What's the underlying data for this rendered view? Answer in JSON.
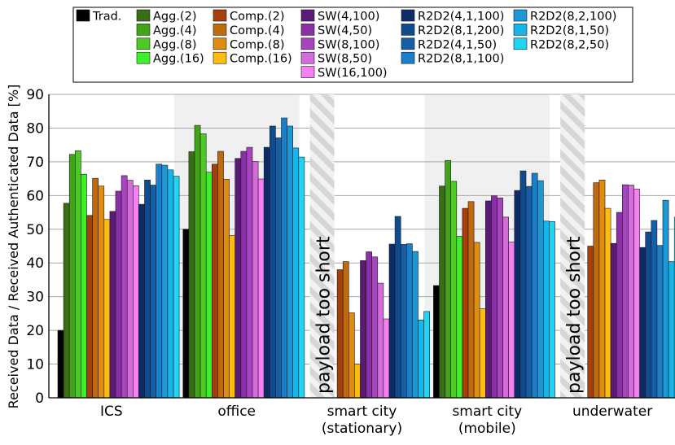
{
  "chart_data": {
    "type": "bar",
    "title": "",
    "xlabel": "",
    "ylabel": "Received Data / Received Authenticated Data [%]",
    "ylim": [
      0,
      90
    ],
    "yticks": [
      0,
      10,
      20,
      30,
      40,
      50,
      60,
      70,
      80,
      90
    ],
    "grid": true,
    "legend_position": "top",
    "categories": [
      {
        "line1": "ICS",
        "line2": ""
      },
      {
        "line1": "office",
        "line2": ""
      },
      {
        "line1": "smart city",
        "line2": "(stationary)"
      },
      {
        "line1": "smart city",
        "line2": "(mobile)"
      },
      {
        "line1": "underwater",
        "line2": ""
      }
    ],
    "shaded_groups": [
      1,
      3
    ],
    "hatched_annotation": {
      "text": "payload too short",
      "groups": [
        2,
        4
      ]
    },
    "series": [
      {
        "name": "Trad.",
        "color": "#000000",
        "values": [
          20,
          50,
          0,
          33.3,
          0
        ]
      },
      {
        "name": "Agg.(2)",
        "color": "#3a6e14",
        "values": [
          57.7,
          73,
          null,
          62.8,
          null
        ]
      },
      {
        "name": "Agg.(4)",
        "color": "#43a318",
        "values": [
          72.2,
          80.8,
          null,
          70.4,
          null
        ]
      },
      {
        "name": "Agg.(8)",
        "color": "#4ccc22",
        "values": [
          73.3,
          78.3,
          null,
          64.2,
          null
        ]
      },
      {
        "name": "Agg.(16)",
        "color": "#3ef02a",
        "values": [
          66.3,
          66.9,
          null,
          47.9,
          null
        ]
      },
      {
        "name": "Comp.(2)",
        "color": "#a5400c",
        "values": [
          54.1,
          69.3,
          38,
          56.2,
          45
        ]
      },
      {
        "name": "Comp.(4)",
        "color": "#c06a10",
        "values": [
          65.1,
          73.1,
          40.4,
          58.2,
          63.8
        ]
      },
      {
        "name": "Comp.(8)",
        "color": "#e08c10",
        "values": [
          62.8,
          64.8,
          25.2,
          46.1,
          64.6
        ]
      },
      {
        "name": "Comp.(16)",
        "color": "#fcbc10",
        "values": [
          52.9,
          48.1,
          10,
          26.4,
          56.2
        ]
      },
      {
        "name": "SW(4,100)",
        "color": "#5c1a78",
        "values": [
          55.3,
          71,
          40.7,
          58.4,
          45.8
        ]
      },
      {
        "name": "SW(4,50)",
        "color": "#8a2fa8",
        "values": [
          61.3,
          73.1,
          43.3,
          59.9,
          55
        ]
      },
      {
        "name": "SW(8,100)",
        "color": "#a844c0",
        "values": [
          65.9,
          74.3,
          41.8,
          59.3,
          63.2
        ]
      },
      {
        "name": "SW(8,50)",
        "color": "#d46cdc",
        "values": [
          64.5,
          70.1,
          34,
          53.6,
          63.1
        ]
      },
      {
        "name": "SW(16,100)",
        "color": "#f580f4",
        "values": [
          62.9,
          64.9,
          23.4,
          46.2,
          61.9
        ]
      },
      {
        "name": "R2D2(4,1,100)",
        "color": "#0d2b66",
        "values": [
          57.4,
          74.3,
          45.6,
          61.5,
          44.6
        ]
      },
      {
        "name": "R2D2(8,1,200)",
        "color": "#0f4b8e",
        "values": [
          64.6,
          80.6,
          53.8,
          67.3,
          49.2
        ]
      },
      {
        "name": "R2D2(4,1,50)",
        "color": "#145fa8",
        "values": [
          63.1,
          77.1,
          45.5,
          62.7,
          52.6
        ]
      },
      {
        "name": "R2D2(8,1,100)",
        "color": "#1b7ec8",
        "values": [
          69.3,
          83,
          45.7,
          66.6,
          45.2
        ]
      },
      {
        "name": "R2D2(8,2,100)",
        "color": "#1a98d8",
        "values": [
          69,
          80.6,
          43.4,
          64.4,
          58.6
        ]
      },
      {
        "name": "R2D2(8,1,50)",
        "color": "#16b6ea",
        "values": [
          67.6,
          74.1,
          23.1,
          52.4,
          40.4
        ]
      },
      {
        "name": "R2D2(8,2,50)",
        "color": "#22d4f4",
        "values": [
          65.7,
          71.4,
          25.6,
          52.3,
          53.6
        ]
      }
    ]
  }
}
